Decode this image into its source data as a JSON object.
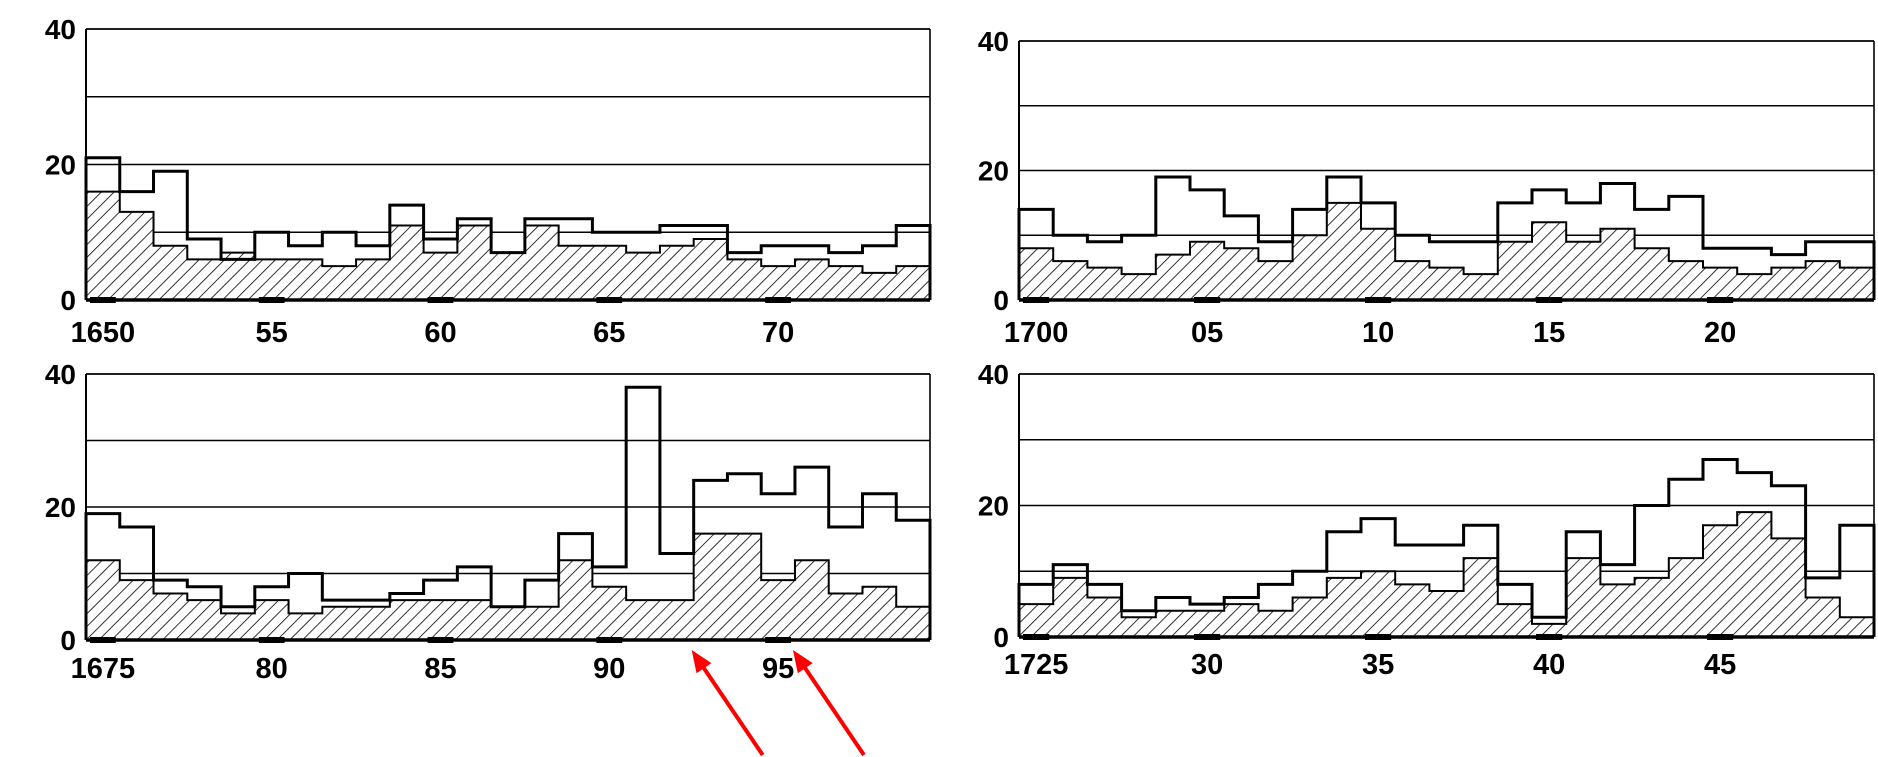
{
  "figure": {
    "colors": {
      "ink": "#000000",
      "hatch": "#000000",
      "arrow": "#ff0000",
      "background": "#ffffff"
    },
    "hatch_pattern": "diagonal",
    "annotation_arrows": [
      {
        "points_to_year": 1693,
        "color": "#ff0000"
      },
      {
        "points_to_year": 1696,
        "color": "#ff0000"
      }
    ]
  },
  "chart_data": [
    {
      "type": "bar",
      "subtype": "stepped-histogram-with-hatched-inner-series",
      "title": "",
      "xlabel": "",
      "ylabel": "",
      "ylim": [
        0,
        40
      ],
      "y_ticks": [
        "0",
        "20",
        "40"
      ],
      "gridlines_y": [
        10,
        20,
        30,
        40
      ],
      "grid": true,
      "x_start": 1650,
      "x_end": 1675,
      "x_tick_years": [
        1650,
        1655,
        1660,
        1665,
        1670
      ],
      "x_tick_labels": [
        "1650",
        "55",
        "60",
        "65",
        "70"
      ],
      "series": [
        {
          "role": "outline",
          "values": [
            21,
            16,
            19,
            9,
            6,
            10,
            8,
            10,
            8,
            14,
            9,
            12,
            7,
            12,
            12,
            10,
            10,
            11,
            11,
            7,
            8,
            8,
            7,
            8,
            11
          ]
        },
        {
          "role": "hatched",
          "values": [
            16,
            13,
            8,
            6,
            7,
            6,
            6,
            5,
            6,
            11,
            7,
            11,
            7,
            11,
            8,
            8,
            7,
            8,
            9,
            6,
            5,
            6,
            5,
            4,
            5
          ]
        }
      ]
    },
    {
      "type": "bar",
      "subtype": "stepped-histogram-with-hatched-inner-series",
      "title": "",
      "xlabel": "",
      "ylabel": "",
      "ylim": [
        0,
        40
      ],
      "y_ticks": [
        "0",
        "20",
        "40"
      ],
      "gridlines_y": [
        10,
        20,
        30,
        40
      ],
      "grid": true,
      "x_start": 1700,
      "x_end": 1725,
      "x_tick_years": [
        1700,
        1705,
        1710,
        1715,
        1720
      ],
      "x_tick_labels": [
        "1700",
        "05",
        "10",
        "15",
        "20"
      ],
      "series": [
        {
          "role": "outline",
          "values": [
            14,
            10,
            9,
            10,
            19,
            17,
            13,
            9,
            14,
            19,
            15,
            10,
            9,
            9,
            15,
            17,
            15,
            18,
            14,
            16,
            8,
            8,
            7,
            9,
            9
          ]
        },
        {
          "role": "hatched",
          "values": [
            8,
            6,
            5,
            4,
            7,
            9,
            8,
            6,
            10,
            15,
            11,
            6,
            5,
            4,
            9,
            12,
            9,
            11,
            8,
            6,
            5,
            4,
            5,
            6,
            5
          ]
        }
      ]
    },
    {
      "type": "bar",
      "subtype": "stepped-histogram-with-hatched-inner-series",
      "title": "",
      "xlabel": "",
      "ylabel": "",
      "ylim": [
        0,
        40
      ],
      "y_ticks": [
        "0",
        "20",
        "40"
      ],
      "gridlines_y": [
        10,
        20,
        30,
        40
      ],
      "grid": true,
      "x_start": 1675,
      "x_end": 1700,
      "x_tick_years": [
        1675,
        1680,
        1685,
        1690,
        1695
      ],
      "x_tick_labels": [
        "1675",
        "80",
        "85",
        "90",
        "95"
      ],
      "series": [
        {
          "role": "outline",
          "values": [
            19,
            17,
            9,
            8,
            5,
            8,
            10,
            6,
            6,
            7,
            9,
            11,
            5,
            9,
            16,
            11,
            38,
            13,
            24,
            25,
            22,
            26,
            17,
            22,
            18
          ]
        },
        {
          "role": "hatched",
          "values": [
            12,
            9,
            7,
            6,
            4,
            6,
            4,
            5,
            5,
            6,
            6,
            6,
            5,
            5,
            12,
            8,
            6,
            6,
            16,
            16,
            9,
            12,
            7,
            8,
            5
          ]
        }
      ]
    },
    {
      "type": "bar",
      "subtype": "stepped-histogram-with-hatched-inner-series",
      "title": "",
      "xlabel": "",
      "ylabel": "",
      "ylim": [
        0,
        40
      ],
      "y_ticks": [
        "0",
        "20",
        "40"
      ],
      "gridlines_y": [
        10,
        20,
        30,
        40
      ],
      "grid": true,
      "x_start": 1725,
      "x_end": 1750,
      "x_tick_years": [
        1725,
        1730,
        1735,
        1740,
        1745
      ],
      "x_tick_labels": [
        "1725",
        "30",
        "35",
        "40",
        "45"
      ],
      "series": [
        {
          "role": "outline",
          "values": [
            8,
            11,
            8,
            4,
            6,
            5,
            6,
            8,
            10,
            16,
            18,
            14,
            14,
            17,
            8,
            3,
            16,
            11,
            20,
            24,
            27,
            25,
            23,
            9,
            17
          ]
        },
        {
          "role": "hatched",
          "values": [
            5,
            9,
            6,
            3,
            4,
            4,
            5,
            4,
            6,
            9,
            10,
            8,
            7,
            12,
            5,
            2,
            12,
            8,
            9,
            12,
            17,
            19,
            15,
            6,
            3
          ]
        }
      ]
    }
  ]
}
